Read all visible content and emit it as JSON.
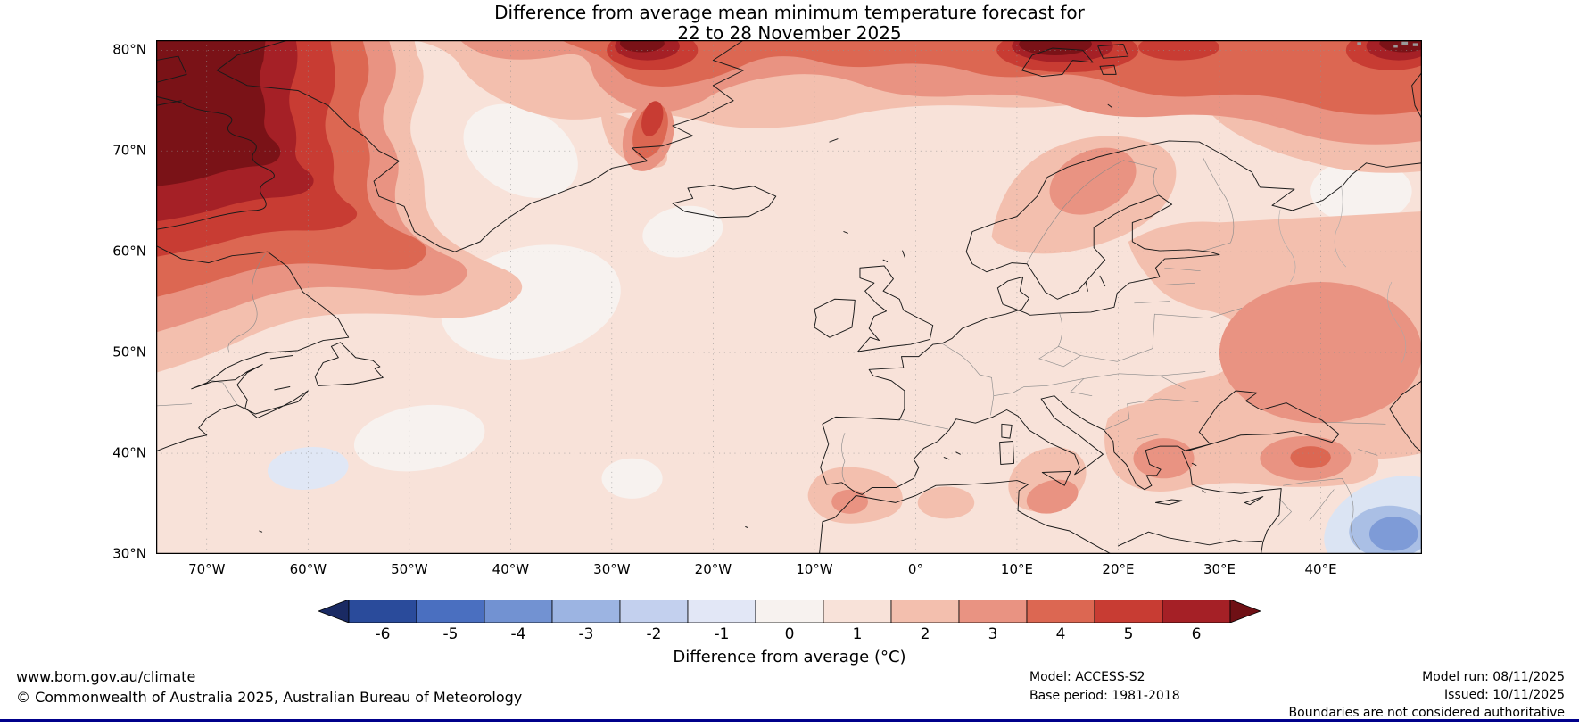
{
  "title": {
    "line1": "Difference from average mean minimum temperature forecast for",
    "line2": "22 to 28 November 2025"
  },
  "map": {
    "lat_labels": [
      "80°N",
      "70°N",
      "60°N",
      "50°N",
      "40°N",
      "30°N"
    ],
    "lon_labels": [
      "70°W",
      "60°W",
      "50°W",
      "40°W",
      "30°W",
      "20°W",
      "10°W",
      "0°",
      "10°E",
      "20°E",
      "30°E",
      "40°E"
    ]
  },
  "colorbar": {
    "tick_labels": [
      "-6",
      "-5",
      "-4",
      "-3",
      "-2",
      "-1",
      "0",
      "1",
      "2",
      "3",
      "4",
      "5",
      "6"
    ],
    "axis_label": "Difference from average (°C)",
    "segment_colors": [
      "#2a4b9b",
      "#4a6fc0",
      "#7292d2",
      "#9cb4e2",
      "#c3d0ee",
      "#e2e7f6",
      "#f7f2ef",
      "#f8e2d9",
      "#f3bfae",
      "#e99382",
      "#dc6752",
      "#c83c33",
      "#a52026"
    ],
    "left_arrow_color": "#1a2a63",
    "right_arrow_color": "#6f1015"
  },
  "chart_data": {
    "type": "filled_contour_map",
    "title": "Difference from average mean minimum temperature forecast for 22 to 28 November 2025",
    "variable": "Mean minimum temperature anomaly",
    "units": "°C",
    "colorbar_levels": [
      -6,
      -5,
      -4,
      -3,
      -2,
      -1,
      0,
      1,
      2,
      3,
      4,
      5,
      6
    ],
    "lat_ticks": [
      "80°N",
      "70°N",
      "60°N",
      "50°N",
      "40°N",
      "30°N"
    ],
    "lon_ticks": [
      "70°W",
      "60°W",
      "50°W",
      "40°W",
      "30°W",
      "20°W",
      "10°W",
      "0°",
      "10°E",
      "20°E",
      "30°E",
      "40°E"
    ],
    "notable_features": [
      {
        "area": "Labrador / Baffin Island / Davis Strait (top left)",
        "anomaly": "+6 or more"
      },
      {
        "area": "Greenland Sea and east Greenland coast",
        "anomaly": "+4 to +6"
      },
      {
        "area": "Svalbard / Barents Sea (top centre-right)",
        "anomaly": "+5 to +6 or more"
      },
      {
        "area": "Far north-east corner (Arctic, ~45°E 80°N)",
        "anomaly": "+5 to +6 or more"
      },
      {
        "area": "Scandinavia",
        "anomaly": "+2 to +3"
      },
      {
        "area": "Eastern Europe / western Russia",
        "anomaly": "+2 to +3"
      },
      {
        "area": "Balkans, Turkey, central Mediterranean, Morocco",
        "anomaly": "+2 to +3"
      },
      {
        "area": "Central North Atlantic",
        "anomaly": "0 to +1"
      },
      {
        "area": "Atlantic near 60°W 38°N",
        "anomaly": "-1 to 0"
      },
      {
        "area": "Middle East (bottom right, ~45°E 33°N)",
        "anomaly": "-2 to -4"
      }
    ]
  },
  "footer": {
    "left": {
      "line1": "www.bom.gov.au/climate",
      "line2": "© Commonwealth of Australia 2025, Australian Bureau of Meteorology"
    },
    "center": {
      "line1": "Model: ACCESS-S2",
      "line2": "Base period: 1981-2018"
    },
    "right": {
      "line1": "Model run: 08/11/2025",
      "line2": "Issued: 10/11/2025",
      "line3": "Boundaries are not considered authoritative"
    }
  },
  "colors": {
    "bottom_rule": "#00008b"
  }
}
